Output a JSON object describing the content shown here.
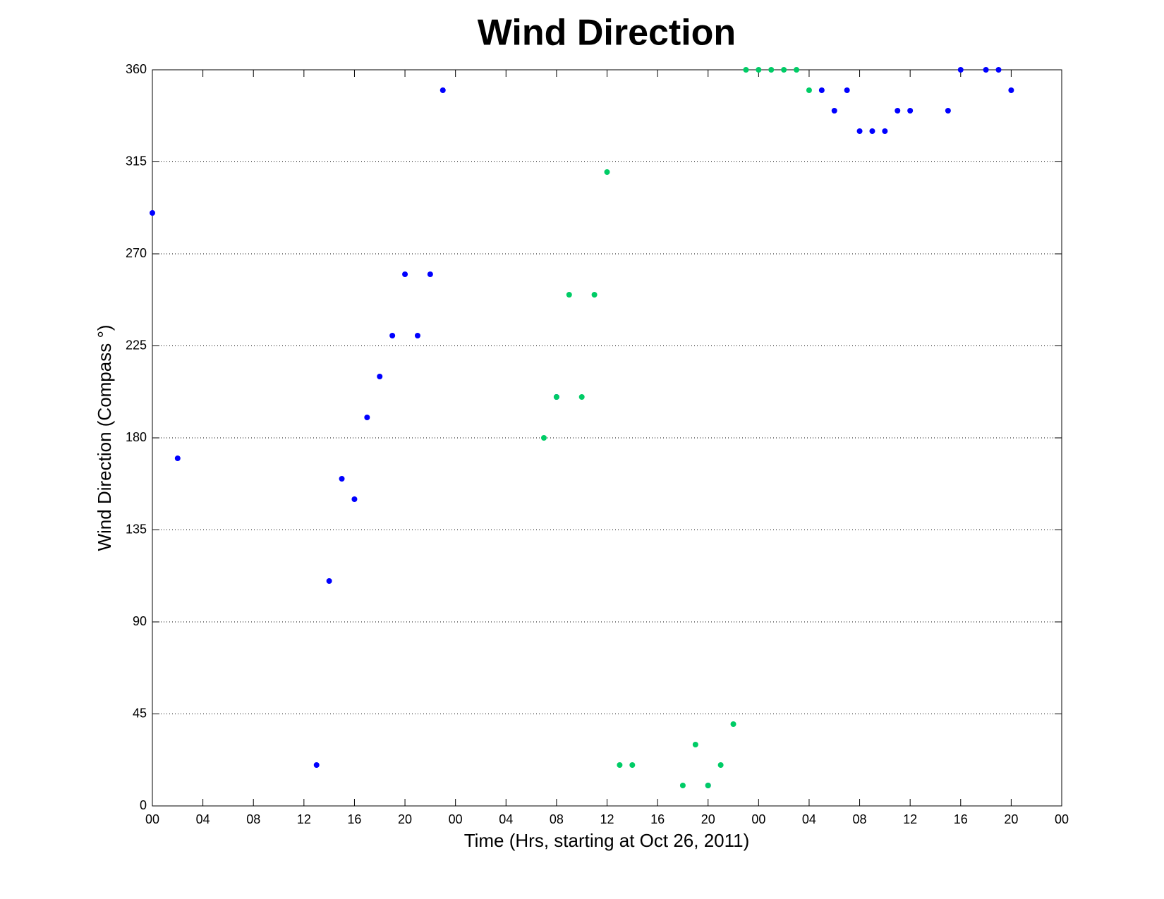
{
  "chart_data": {
    "type": "scatter",
    "title": "Wind Direction",
    "xlabel": "Time (Hrs, starting at Oct 26, 2011)",
    "ylabel": "Wind Direction (Compass °)",
    "xlim": [
      0,
      72
    ],
    "ylim": [
      0,
      360
    ],
    "xticks": [
      {
        "value": 0,
        "label": "00"
      },
      {
        "value": 4,
        "label": "04"
      },
      {
        "value": 8,
        "label": "08"
      },
      {
        "value": 12,
        "label": "12"
      },
      {
        "value": 16,
        "label": "16"
      },
      {
        "value": 20,
        "label": "20"
      },
      {
        "value": 24,
        "label": "00"
      },
      {
        "value": 28,
        "label": "04"
      },
      {
        "value": 32,
        "label": "08"
      },
      {
        "value": 36,
        "label": "12"
      },
      {
        "value": 40,
        "label": "16"
      },
      {
        "value": 44,
        "label": "20"
      },
      {
        "value": 48,
        "label": "00"
      },
      {
        "value": 52,
        "label": "04"
      },
      {
        "value": 56,
        "label": "08"
      },
      {
        "value": 60,
        "label": "12"
      },
      {
        "value": 64,
        "label": "16"
      },
      {
        "value": 68,
        "label": "20"
      },
      {
        "value": 72,
        "label": "00"
      }
    ],
    "yticks": [
      0,
      45,
      90,
      135,
      180,
      225,
      270,
      315,
      360
    ],
    "ygrid": true,
    "xgrid": false,
    "series": [
      {
        "color": "#0000ff",
        "x": [
          0,
          2,
          13,
          14,
          15,
          16,
          17,
          18,
          19,
          20,
          21,
          22,
          23,
          32,
          44,
          53,
          54,
          55,
          56,
          57,
          58,
          59,
          60,
          63,
          64,
          66,
          67,
          68
        ],
        "values": [
          290,
          170,
          20,
          110,
          160,
          150,
          190,
          210,
          230,
          260,
          230,
          260,
          350,
          200,
          10,
          350,
          340,
          350,
          330,
          330,
          330,
          340,
          340,
          340,
          360,
          360,
          360,
          350
        ]
      },
      {
        "color": "#00cc66",
        "x": [
          31,
          32,
          33,
          34,
          35,
          36,
          37,
          38,
          42,
          43,
          44,
          45,
          46,
          47,
          48,
          49,
          50,
          51,
          52
        ],
        "values": [
          180,
          200,
          250,
          200,
          250,
          310,
          20,
          20,
          10,
          30,
          10,
          20,
          40,
          360,
          360,
          360,
          360,
          360,
          350
        ]
      }
    ]
  }
}
